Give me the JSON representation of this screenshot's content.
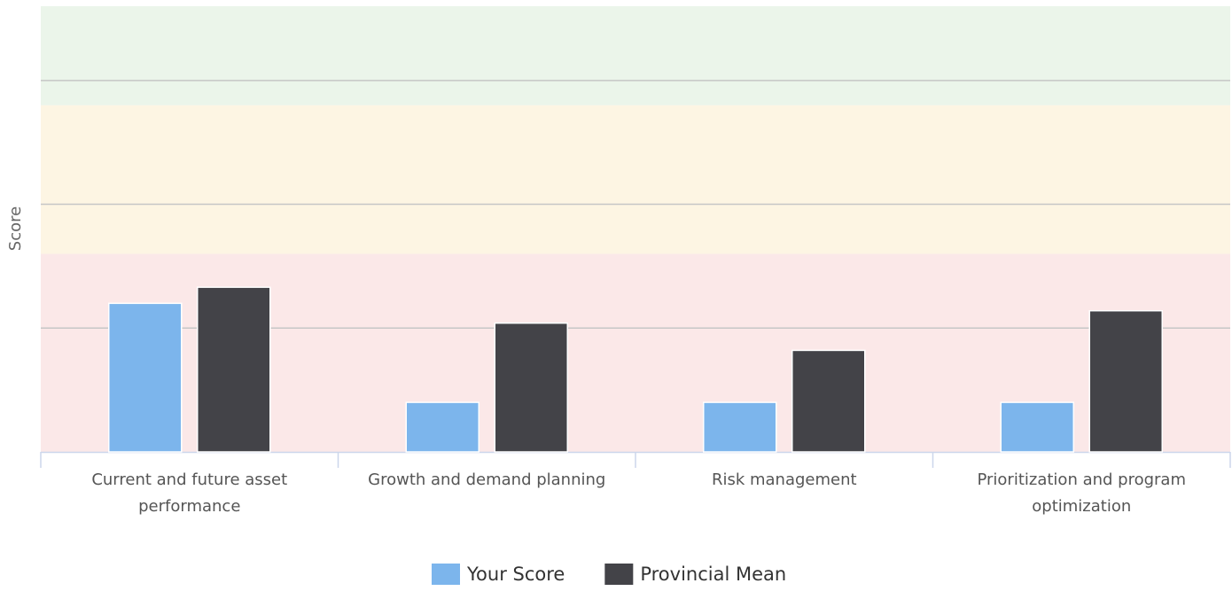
{
  "chart_data": {
    "type": "bar",
    "y_axis_label": "Score",
    "categories": [
      "Current and future asset performance",
      "Growth and demand planning",
      "Risk management",
      "Prioritization and program optimization"
    ],
    "series": [
      {
        "name": "Your Score",
        "color": "#7cb5ec",
        "values": [
          1.2,
          0.4,
          0.4,
          0.4
        ]
      },
      {
        "name": "Provincial Mean",
        "color": "#434348",
        "values": [
          1.33,
          1.04,
          0.82,
          1.14
        ]
      }
    ],
    "ylim": [
      0,
      3.6
    ],
    "yticks": [
      1,
      2,
      3
    ],
    "grid": true,
    "plot_bands": [
      {
        "from": 0,
        "to": 1.6,
        "color": "#fbe8e8"
      },
      {
        "from": 1.6,
        "to": 2.8,
        "color": "#fdf5e3"
      },
      {
        "from": 2.8,
        "to": 3.6,
        "color": "#ebf5ea"
      }
    ],
    "legend": "bottom"
  }
}
